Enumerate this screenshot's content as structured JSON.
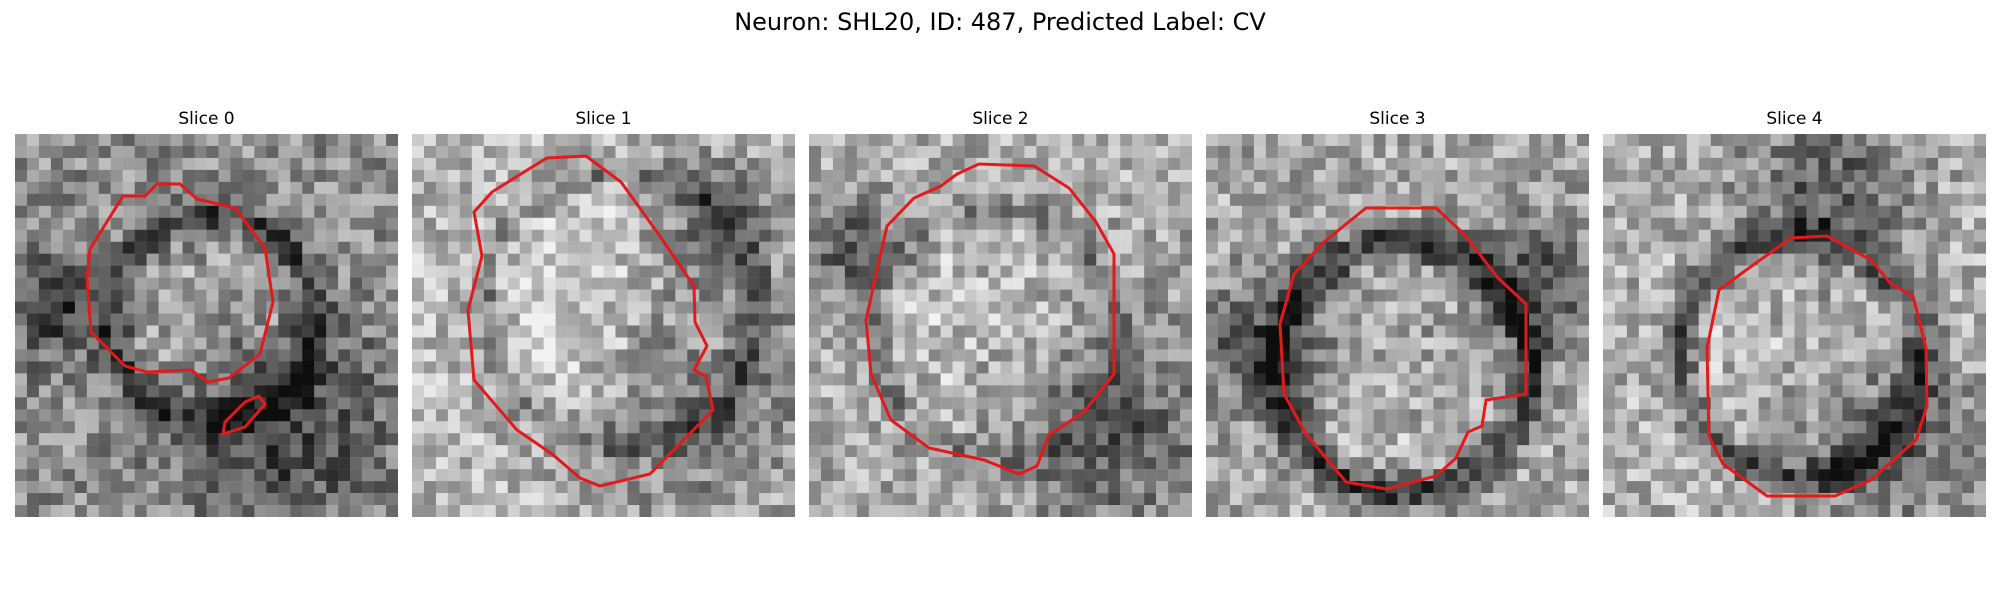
{
  "figure": {
    "title": "Neuron: SHL20, ID: 487, Predicted Label: CV"
  },
  "colors": {
    "background": "#ffffff",
    "contour": "#e31a1c",
    "grayscale_dark": "#111111",
    "grayscale_light": "#f2f2f2"
  },
  "panels": [
    {
      "label": "Slice 0"
    },
    {
      "label": "Slice 1"
    },
    {
      "label": "Slice 2"
    },
    {
      "label": "Slice 3"
    },
    {
      "label": "Slice 4"
    }
  ]
}
